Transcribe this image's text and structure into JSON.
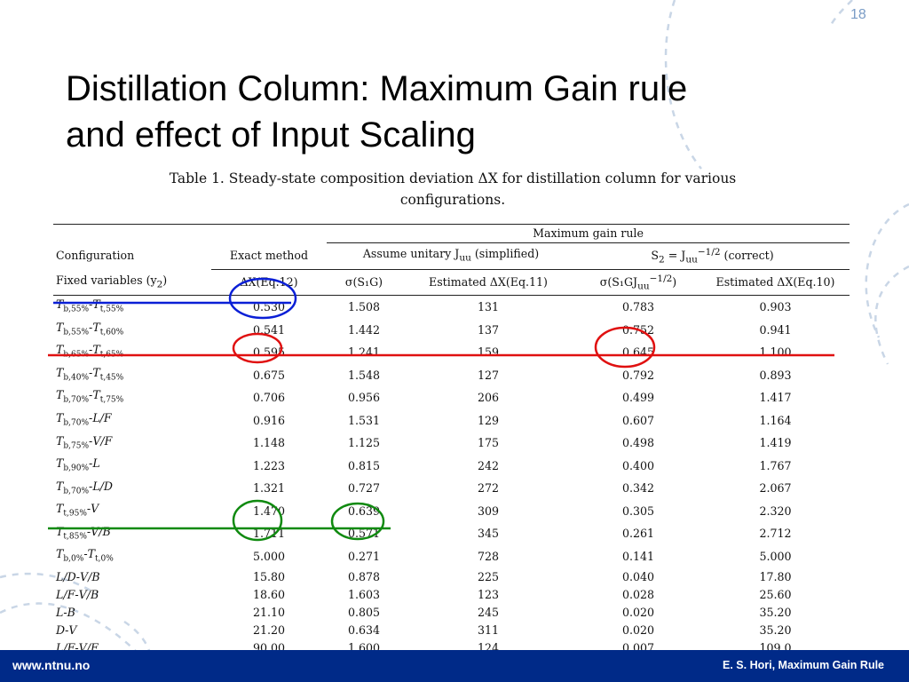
{
  "slide": {
    "number": "18",
    "title_lines": [
      "Distillation Column: Maximum Gain rule",
      "and effect of Input Scaling"
    ],
    "caption_lines": [
      "Table 1. Steady-state composition deviation ΔX for distillation column for various",
      "configurations."
    ]
  },
  "table": {
    "group_header": "Maximum gain rule",
    "header1": {
      "configuration": "Configuration",
      "exact_method": "Exact method",
      "assume_unitary": "Assume unitary J",
      "assume_unitary_sub": "uu",
      "assume_unitary_tail": " (simplified)",
      "s2_label": "S",
      "s2_sub": "2",
      "s2_mid": " = J",
      "s2_sub2": "uu",
      "s2_sup": "−1/2",
      "s2_tail": " (correct)"
    },
    "header2": {
      "fixed_vars": "Fixed variables (y",
      "fixed_vars_sub": "2",
      "fixed_vars_tail": ")",
      "delta_x_eq12": "ΔX(Eq.12)",
      "sigma_s1g": "σ(S₁G)",
      "est_eq11": "Estimated ΔX(Eq.11)",
      "sigma_s1gj": "σ(S₁GJ",
      "sigma_s1gj_sub": "uu",
      "sigma_s1gj_sup": "−1/2",
      "sigma_s1gj_tail": ")",
      "est_eq10": "Estimated ΔX(Eq.10)"
    },
    "rows": [
      {
        "a": "T",
        "as": "b,55%",
        "sep": "-",
        "b": "T",
        "bs": "t,55%",
        "exact": "0.530",
        "sig1": "1.508",
        "est11": "131",
        "sig2": "0.783",
        "est10": "0.903",
        "bold_exact": true
      },
      {
        "a": "T",
        "as": "b,55%",
        "sep": "-",
        "b": "T",
        "bs": "t,60%",
        "exact": "0.541",
        "sig1": "1.442",
        "est11": "137",
        "sig2": "0.752",
        "est10": "0.941"
      },
      {
        "a": "T",
        "as": "b,65%",
        "sep": "-",
        "b": "T",
        "bs": "t,65%",
        "exact": "0.595",
        "sig1": "1.241",
        "est11": "159",
        "sig2": "0.645",
        "est10": "1.100"
      },
      {
        "a": "T",
        "as": "b,40%",
        "sep": "-",
        "b": "T",
        "bs": "t,45%",
        "exact": "0.675",
        "sig1": "1.548",
        "est11": "127",
        "sig2": "0.792",
        "est10": "0.893",
        "bold_sig2": true,
        "bold_est10": true
      },
      {
        "a": "T",
        "as": "b,70%",
        "sep": "-",
        "b": "T",
        "bs": "t,75%",
        "exact": "0.706",
        "sig1": "0.956",
        "est11": "206",
        "sig2": "0.499",
        "est10": "1.417"
      },
      {
        "a": "T",
        "as": "b,70%",
        "sep": "-",
        "b": "L/F",
        "bs": "",
        "exact": "0.916",
        "sig1": "1.531",
        "est11": "129",
        "sig2": "0.607",
        "est10": "1.164"
      },
      {
        "a": "T",
        "as": "b,75%",
        "sep": "-",
        "b": "V/F",
        "bs": "",
        "exact": "1.148",
        "sig1": "1.125",
        "est11": "175",
        "sig2": "0.498",
        "est10": "1.419"
      },
      {
        "a": "T",
        "as": "b,90%",
        "sep": "-",
        "b": "L",
        "bs": "",
        "exact": "1.223",
        "sig1": "0.815",
        "est11": "242",
        "sig2": "0.400",
        "est10": "1.767"
      },
      {
        "a": "T",
        "as": "b,70%",
        "sep": "-",
        "b": "L/D",
        "bs": "",
        "exact": "1.321",
        "sig1": "0.727",
        "est11": "272",
        "sig2": "0.342",
        "est10": "2.067"
      },
      {
        "a": "T",
        "as": "t,95%",
        "sep": "-",
        "b": "V",
        "bs": "",
        "exact": "1.470",
        "sig1": "0.639",
        "est11": "309",
        "sig2": "0.305",
        "est10": "2.320"
      },
      {
        "a": "T",
        "as": "t,85%",
        "sep": "-",
        "b": "V/B",
        "bs": "",
        "exact": "1.711",
        "sig1": "0.571",
        "est11": "345",
        "sig2": "0.261",
        "est10": "2.712"
      },
      {
        "a": "T",
        "as": "b,0%",
        "sep": "-",
        "b": "T",
        "bs": "t,0%",
        "exact": "5.000",
        "sig1": "0.271",
        "est11": "728",
        "sig2": "0.141",
        "est10": "5.000"
      },
      {
        "a": "L/D",
        "as": "",
        "sep": "-",
        "b": "V/B",
        "bs": "",
        "exact": "15.80",
        "sig1": "0.878",
        "est11": "225",
        "sig2": "0.040",
        "est10": "17.80"
      },
      {
        "a": "L/F",
        "as": "",
        "sep": "-",
        "b": "V/B",
        "bs": "",
        "exact": "18.60",
        "sig1": "1.603",
        "est11": "123",
        "sig2": "0.028",
        "est10": "25.60",
        "bold_sig1": true,
        "bold_est11": true
      },
      {
        "a": "L",
        "as": "",
        "sep": "-",
        "b": "B",
        "bs": "",
        "exact": "21.10",
        "sig1": "0.805",
        "est11": "245",
        "sig2": "0.020",
        "est10": "35.20"
      },
      {
        "a": "D",
        "as": "",
        "sep": "-",
        "b": "V",
        "bs": "",
        "exact": "21.20",
        "sig1": "0.634",
        "est11": "311",
        "sig2": "0.020",
        "est10": "35.20"
      },
      {
        "a": "L/F",
        "as": "",
        "sep": "-",
        "b": "V/F",
        "bs": "",
        "exact": "90.00",
        "sig1": "1.600",
        "est11": "124",
        "sig2": "0.007",
        "est10": "109.0"
      }
    ]
  },
  "annotations": {
    "colors": {
      "blue": "#0a1fd6",
      "red": "#e01010",
      "green": "#108a10"
    }
  },
  "footer": {
    "left": "www.ntnu.no",
    "right": "E. S. Hori, Maximum Gain Rule",
    "background": "#002a88"
  }
}
